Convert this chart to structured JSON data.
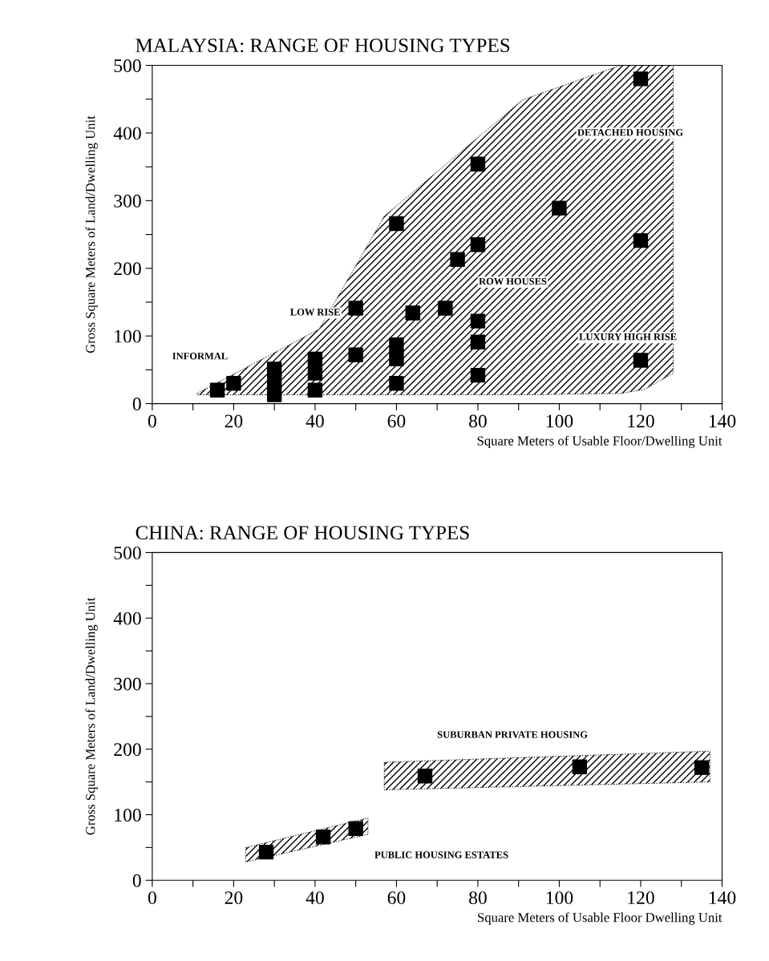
{
  "chart_data": [
    {
      "type": "scatter",
      "title": "MALAYSIA: RANGE OF HOUSING TYPES",
      "xlabel": "Square Meters of Usable Floor/Dwelling Unit",
      "ylabel": "Gross Square Meters of Land/Dwelling Unit",
      "xlim": [
        0,
        140
      ],
      "ylim": [
        0,
        500
      ],
      "xticks": [
        0,
        {
          "value": 10,
          "label": null
        },
        20,
        {
          "value": 30,
          "label": null
        },
        40,
        {
          "value": 50,
          "label": null
        },
        60,
        {
          "value": 70,
          "label": null
        },
        80,
        {
          "value": 90,
          "label": null
        },
        100,
        {
          "value": 110,
          "label": null
        },
        120,
        {
          "value": 130,
          "label": null
        },
        140
      ],
      "yticks": [
        0,
        {
          "value": 50,
          "label": null
        },
        100,
        {
          "value": 150,
          "label": null
        },
        200,
        {
          "value": 250,
          "label": null
        },
        300,
        {
          "value": 350,
          "label": null
        },
        400,
        {
          "value": 450,
          "label": null
        },
        500
      ],
      "grid": false,
      "legend": false,
      "series": [
        {
          "type": "area",
          "color": "#000000",
          "x": [
            11,
            41,
            57,
            91,
            115,
            128,
            128,
            121,
            115,
            91,
            57,
            41,
            11
          ],
          "values": [
            15,
            110,
            277,
            449,
            500,
            500,
            45,
            21,
            15,
            13,
            13,
            13,
            13
          ]
        },
        {
          "type": "scatter",
          "marker": "square",
          "color": "#000000",
          "x": [
            16,
            20,
            30,
            30,
            30,
            40,
            40,
            40,
            50,
            50,
            60,
            60,
            60,
            60,
            64,
            72,
            75,
            80,
            80,
            80,
            80,
            80,
            100,
            120,
            120,
            120
          ],
          "values": [
            20,
            30,
            13,
            33,
            51,
            20,
            45,
            66,
            72,
            141,
            30,
            66,
            87,
            266,
            134,
            141,
            213,
            42,
            91,
            122,
            235,
            354,
            289,
            64,
            241,
            480
          ]
        }
      ],
      "annotations": [
        "INFORMAL",
        "LOW RISE",
        "ROW HOUSES",
        "DETACHED HOUSING",
        "LUXURY HIGH RISE"
      ]
    },
    {
      "type": "scatter",
      "title": "CHINA: RANGE OF HOUSING TYPES",
      "xlabel": "Square Meters of Usable Floor Dwelling Unit",
      "ylabel": "Gross Square Meters of Land/Dwelling Unit",
      "xlim": [
        0,
        140
      ],
      "ylim": [
        0,
        500
      ],
      "xticks": [
        0,
        {
          "value": 10,
          "label": null
        },
        20,
        {
          "value": 30,
          "label": null
        },
        40,
        {
          "value": 50,
          "label": null
        },
        60,
        {
          "value": 70,
          "label": null
        },
        80,
        {
          "value": 90,
          "label": null
        },
        100,
        {
          "value": 110,
          "label": null
        },
        120,
        {
          "value": 130,
          "label": null
        },
        140
      ],
      "yticks": [
        0,
        {
          "value": 50,
          "label": null
        },
        100,
        {
          "value": 150,
          "label": null
        },
        200,
        {
          "value": 250,
          "label": null
        },
        300,
        {
          "value": 350,
          "label": null
        },
        400,
        {
          "value": 450,
          "label": null
        },
        500
      ],
      "grid": false,
      "legend": false,
      "series": [
        {
          "type": "area",
          "color": "#000000",
          "x": [
            23,
            53,
            53,
            23
          ],
          "values": [
            50,
            95,
            70,
            28
          ]
        },
        {
          "type": "area",
          "color": "#000000",
          "x": [
            57,
            137,
            137,
            57
          ],
          "values": [
            180,
            197,
            150,
            138
          ]
        },
        {
          "type": "scatter",
          "marker": "square",
          "color": "#000000",
          "x": [
            28,
            42,
            50,
            67,
            105,
            135
          ],
          "values": [
            43,
            66,
            79,
            159,
            173,
            172
          ]
        }
      ],
      "annotations": [
        "SUBURBAN PRIVATE HOUSING",
        "PUBLIC HOUSING ESTATES"
      ]
    }
  ]
}
